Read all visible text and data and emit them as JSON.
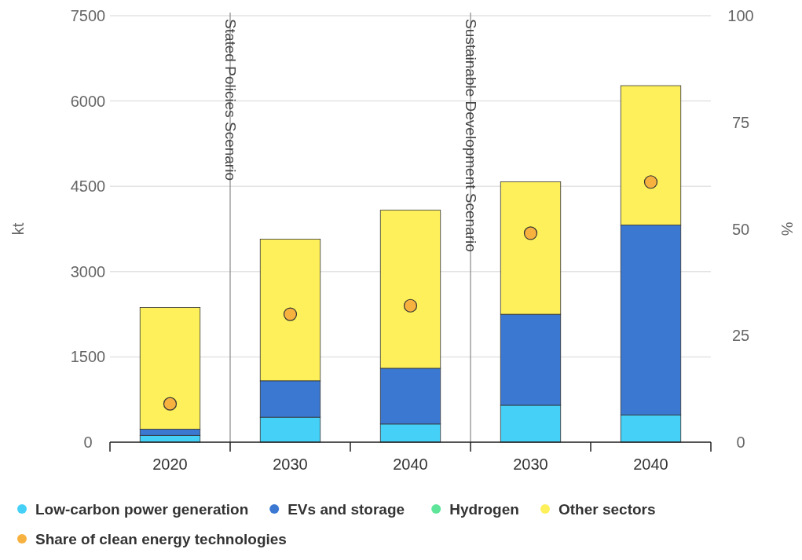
{
  "chart_data": {
    "type": "bar",
    "stacked": true,
    "categories": [
      "2020",
      "2030",
      "2040",
      "2030",
      "2040"
    ],
    "ylabel": "kt",
    "y2label": "%",
    "ylim": [
      0,
      7500
    ],
    "yticks": [
      0,
      1500,
      3000,
      4500,
      6000,
      7500
    ],
    "y2lim": [
      0,
      100
    ],
    "y2ticks": [
      0,
      25,
      50,
      75,
      100
    ],
    "grid": "y",
    "legend": "bottom",
    "series": [
      {
        "name": "Low-carbon power generation",
        "color": "#45d0f7",
        "values": [
          120,
          440,
          320,
          650,
          480
        ]
      },
      {
        "name": "EVs and storage",
        "color": "#3a78d2",
        "values": [
          110,
          640,
          980,
          1600,
          3340
        ]
      },
      {
        "name": "Hydrogen",
        "color": "#5ee59a",
        "values": [
          0,
          0,
          0,
          0,
          0
        ]
      },
      {
        "name": "Other sectors",
        "color": "#fdf05a",
        "values": [
          2140,
          2490,
          2780,
          2330,
          2450
        ]
      },
      {
        "name": "Share of clean energy technologies",
        "color": "#f7b13f",
        "type": "scatter",
        "axis": "y2",
        "marker": "circle",
        "values": [
          9,
          30,
          32,
          49,
          61
        ]
      }
    ],
    "annotations": [
      "Stated Policies Scenario",
      "Sustainable Development Scenario"
    ]
  }
}
